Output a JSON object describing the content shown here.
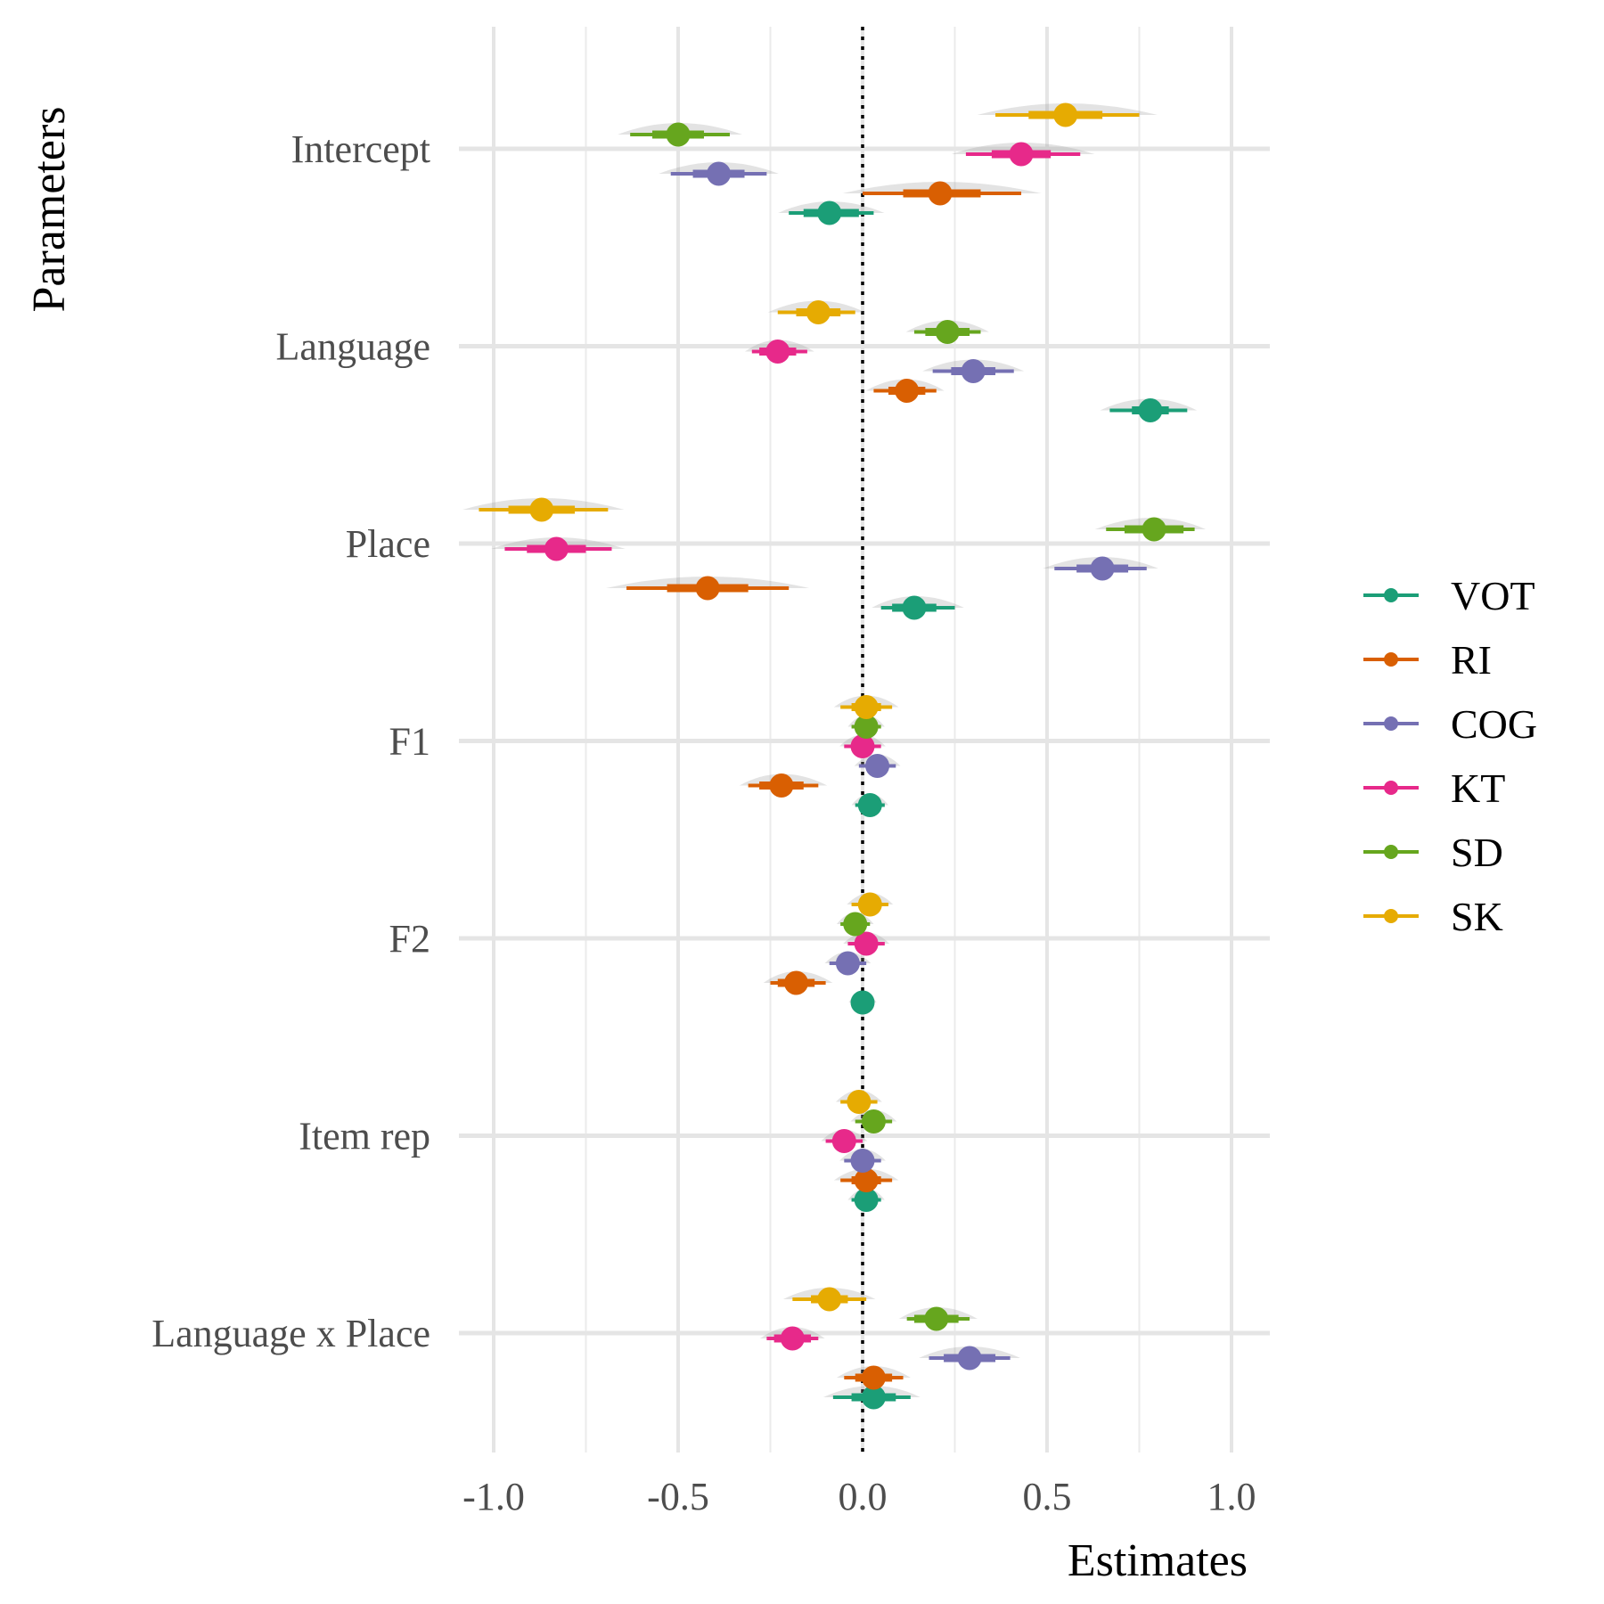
{
  "chart_data": {
    "type": "scatter",
    "title": "",
    "xlabel": "Estimates",
    "ylabel": "Parameters",
    "xlim": [
      -1.1,
      1.1
    ],
    "x_ticks": [
      -1.0,
      -0.5,
      0.0,
      0.5,
      1.0
    ],
    "x_tick_labels": [
      "-1.0",
      "-0.5",
      "0.0",
      "0.5",
      "1.0"
    ],
    "reference_line": 0,
    "grid": true,
    "legend_position": "right",
    "categories": [
      "Intercept",
      "Language",
      "Place",
      "F1",
      "F2",
      "Item rep",
      "Language x Place"
    ],
    "series": [
      {
        "name": "VOT",
        "color": "#1b9e77",
        "estimates": [
          -0.09,
          0.78,
          0.14,
          0.02,
          0.0,
          0.01,
          0.03
        ],
        "intervals_66": [
          [
            -0.16,
            -0.01
          ],
          [
            0.73,
            0.83
          ],
          [
            0.08,
            0.2
          ],
          [
            0.0,
            0.04
          ],
          [
            -0.02,
            0.02
          ],
          [
            -0.01,
            0.03
          ],
          [
            -0.03,
            0.09
          ]
        ],
        "intervals_95": [
          [
            -0.2,
            0.03
          ],
          [
            0.67,
            0.88
          ],
          [
            0.05,
            0.25
          ],
          [
            -0.02,
            0.06
          ],
          [
            -0.03,
            0.03
          ],
          [
            -0.03,
            0.05
          ],
          [
            -0.08,
            0.13
          ]
        ]
      },
      {
        "name": "RI",
        "color": "#d95f02",
        "estimates": [
          0.21,
          0.12,
          -0.42,
          -0.22,
          -0.18,
          0.01,
          0.03
        ],
        "intervals_66": [
          [
            0.11,
            0.32
          ],
          [
            0.07,
            0.17
          ],
          [
            -0.53,
            -0.31
          ],
          [
            -0.28,
            -0.16
          ],
          [
            -0.23,
            -0.13
          ],
          [
            -0.03,
            0.05
          ],
          [
            -0.02,
            0.08
          ]
        ],
        "intervals_95": [
          [
            0.0,
            0.43
          ],
          [
            0.03,
            0.2
          ],
          [
            -0.64,
            -0.2
          ],
          [
            -0.31,
            -0.12
          ],
          [
            -0.25,
            -0.1
          ],
          [
            -0.06,
            0.08
          ],
          [
            -0.05,
            0.11
          ]
        ]
      },
      {
        "name": "COG",
        "color": "#7570b3",
        "estimates": [
          -0.39,
          0.3,
          0.65,
          0.04,
          -0.04,
          0.0,
          0.29
        ],
        "intervals_66": [
          [
            -0.46,
            -0.32
          ],
          [
            0.24,
            0.36
          ],
          [
            0.58,
            0.72
          ],
          [
            0.01,
            0.07
          ],
          [
            -0.07,
            -0.01
          ],
          [
            -0.03,
            0.03
          ],
          [
            0.22,
            0.36
          ]
        ],
        "intervals_95": [
          [
            -0.52,
            -0.26
          ],
          [
            0.19,
            0.41
          ],
          [
            0.52,
            0.77
          ],
          [
            -0.01,
            0.09
          ],
          [
            -0.09,
            0.01
          ],
          [
            -0.05,
            0.05
          ],
          [
            0.18,
            0.4
          ]
        ]
      },
      {
        "name": "KT",
        "color": "#e7298a",
        "estimates": [
          0.43,
          -0.23,
          -0.83,
          0.0,
          0.01,
          -0.05,
          -0.19
        ],
        "intervals_66": [
          [
            0.35,
            0.51
          ],
          [
            -0.28,
            -0.18
          ],
          [
            -0.91,
            -0.75
          ],
          [
            -0.03,
            0.03
          ],
          [
            -0.02,
            0.04
          ],
          [
            -0.08,
            -0.02
          ],
          [
            -0.24,
            -0.14
          ]
        ],
        "intervals_95": [
          [
            0.28,
            0.59
          ],
          [
            -0.3,
            -0.15
          ],
          [
            -0.97,
            -0.68
          ],
          [
            -0.05,
            0.05
          ],
          [
            -0.04,
            0.06
          ],
          [
            -0.1,
            0.0
          ],
          [
            -0.26,
            -0.12
          ]
        ]
      },
      {
        "name": "SD",
        "color": "#66a61e",
        "estimates": [
          -0.5,
          0.23,
          0.79,
          0.01,
          -0.02,
          0.03,
          0.2
        ],
        "intervals_66": [
          [
            -0.57,
            -0.43
          ],
          [
            0.17,
            0.29
          ],
          [
            0.71,
            0.87
          ],
          [
            -0.02,
            0.04
          ],
          [
            -0.05,
            0.01
          ],
          [
            0.0,
            0.06
          ],
          [
            0.14,
            0.26
          ]
        ],
        "intervals_95": [
          [
            -0.63,
            -0.36
          ],
          [
            0.14,
            0.32
          ],
          [
            0.66,
            0.9
          ],
          [
            -0.03,
            0.05
          ],
          [
            -0.06,
            0.02
          ],
          [
            -0.02,
            0.08
          ],
          [
            0.12,
            0.29
          ]
        ]
      },
      {
        "name": "SK",
        "color": "#e6ab02",
        "estimates": [
          0.55,
          -0.12,
          -0.87,
          0.01,
          0.02,
          -0.01,
          -0.09
        ],
        "intervals_66": [
          [
            0.45,
            0.65
          ],
          [
            -0.18,
            -0.06
          ],
          [
            -0.96,
            -0.78
          ],
          [
            -0.03,
            0.05
          ],
          [
            -0.01,
            0.05
          ],
          [
            -0.04,
            0.02
          ],
          [
            -0.14,
            -0.04
          ]
        ],
        "intervals_95": [
          [
            0.36,
            0.75
          ],
          [
            -0.23,
            -0.02
          ],
          [
            -1.04,
            -0.69
          ],
          [
            -0.06,
            0.08
          ],
          [
            -0.03,
            0.07
          ],
          [
            -0.06,
            0.04
          ],
          [
            -0.19,
            0.01
          ]
        ]
      }
    ]
  }
}
